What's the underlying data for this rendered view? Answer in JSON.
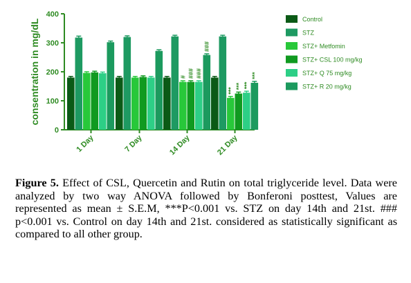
{
  "chart_data": {
    "type": "bar",
    "ylabel": "consentration in mg/dL",
    "yticks": [
      0,
      100,
      200,
      300,
      400
    ],
    "ylim": [
      0,
      400
    ],
    "categories": [
      "1 Day",
      "7 Day",
      "14 Day",
      "21 Day"
    ],
    "series": [
      {
        "name": "Control",
        "color": "#0b5a16",
        "values": [
          180,
          180,
          180,
          180
        ],
        "errors": [
          4,
          4,
          4,
          4
        ],
        "annotations": [
          "",
          "",
          "",
          ""
        ]
      },
      {
        "name": "STZ",
        "color": "#1e9a62",
        "values": [
          318,
          320,
          322,
          322
        ],
        "errors": [
          5,
          4,
          4,
          4
        ],
        "annotations": [
          "",
          "",
          "",
          ""
        ]
      },
      {
        "name": "STZ+ Metfomin",
        "color": "#28c83a",
        "values": [
          196,
          180,
          165,
          110
        ],
        "errors": [
          4,
          4,
          4,
          5
        ],
        "annotations": [
          "",
          "",
          "#",
          "***"
        ]
      },
      {
        "name": "STZ+ CSL 100 mg/kg",
        "color": "#109a20",
        "values": [
          198,
          182,
          165,
          125
        ],
        "errors": [
          4,
          4,
          4,
          5
        ],
        "annotations": [
          "",
          "",
          "###",
          "***"
        ]
      },
      {
        "name": "STZ+ Q 75 mg/kg",
        "color": "#2dcf86",
        "values": [
          195,
          180,
          165,
          128
        ],
        "errors": [
          4,
          4,
          4,
          5
        ],
        "annotations": [
          "",
          "",
          "###",
          "***"
        ]
      },
      {
        "name": "STZ+ R 20 mg/kg",
        "color": "#1c9a5e",
        "values": [
          302,
          272,
          258,
          162
        ],
        "errors": [
          4,
          4,
          4,
          5
        ],
        "annotations": [
          "",
          "",
          "###",
          "***"
        ]
      }
    ]
  },
  "caption": {
    "label": "Figure 5.",
    "text": " Effect of CSL, Quercetin and Rutin on total triglyceride level. Data were analyzed by two way ANOVA followed by Bonferoni posttest, Values are represented as mean ± S.E.M, ***P<0.001 vs. STZ on day 14th and 21st. ### p<0.001 vs. Control on day 14th and 21st. considered as statistically significant as compared to all other group."
  }
}
